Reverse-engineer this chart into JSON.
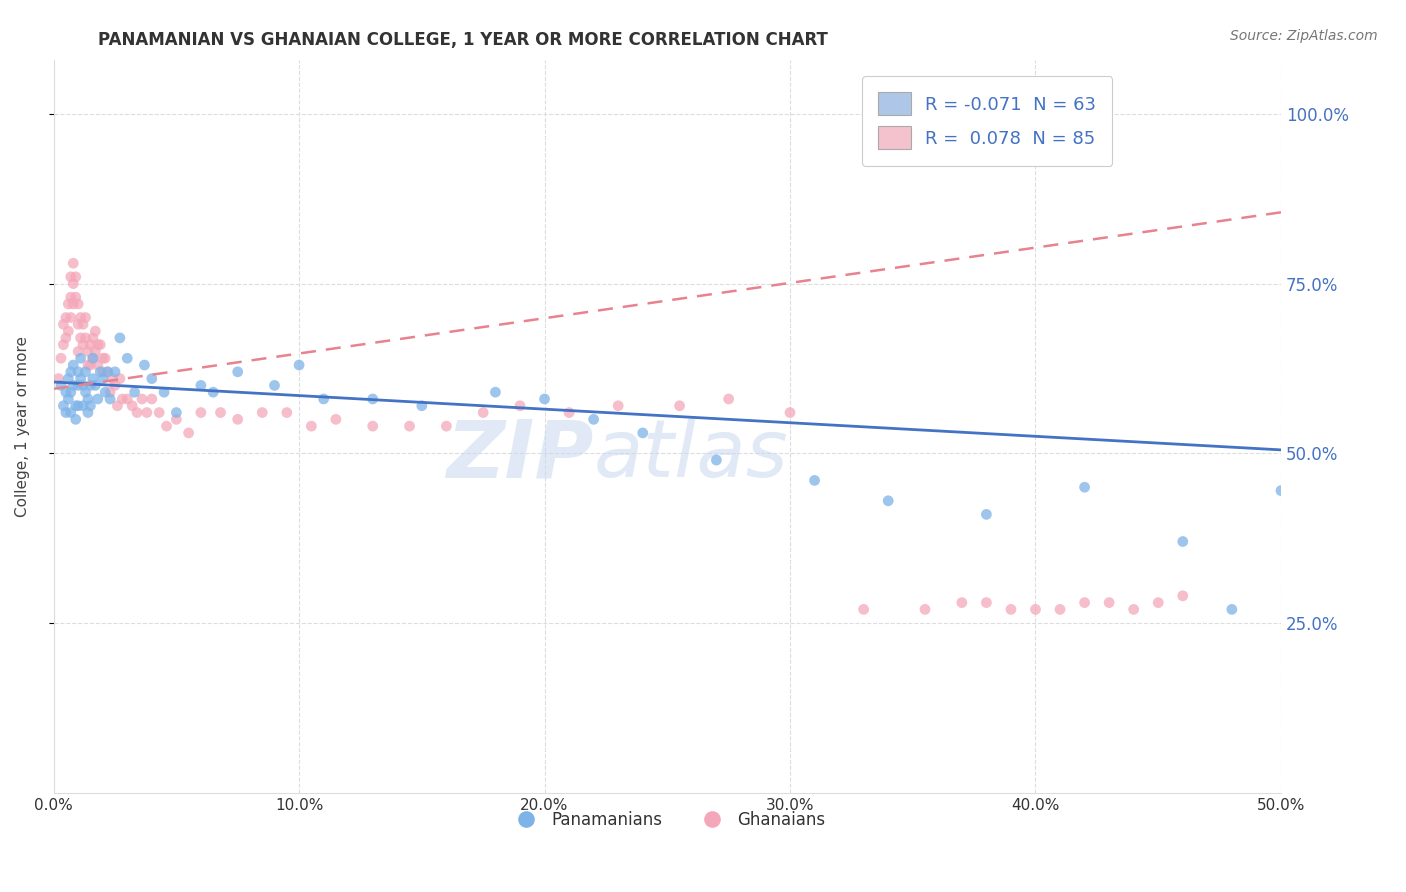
{
  "title": "PANAMANIAN VS GHANAIAN COLLEGE, 1 YEAR OR MORE CORRELATION CHART",
  "source_text": "Source: ZipAtlas.com",
  "ylabel": "College, 1 year or more",
  "xlim": [
    0.0,
    0.5
  ],
  "ylim": [
    0.0,
    1.08
  ],
  "xtick_labels": [
    "0.0%",
    "10.0%",
    "20.0%",
    "30.0%",
    "40.0%",
    "50.0%"
  ],
  "xtick_vals": [
    0.0,
    0.1,
    0.2,
    0.3,
    0.4,
    0.5
  ],
  "ytick_labels": [
    "25.0%",
    "50.0%",
    "75.0%",
    "100.0%"
  ],
  "ytick_vals": [
    0.25,
    0.5,
    0.75,
    1.0
  ],
  "blue_dot_color": "#7EB3E8",
  "pink_dot_color": "#F4A7B9",
  "blue_line_color": "#4472C4",
  "pink_line_color": "#E8828F",
  "legend_blue_face": "#AEC6E8",
  "legend_pink_face": "#F4C2CC",
  "axis_label_color": "#5580CC",
  "right_tick_color": "#4472C4",
  "R_blue": -0.071,
  "N_blue": 63,
  "R_pink": 0.078,
  "N_pink": 85,
  "blue_line_y0": 0.605,
  "blue_line_y1": 0.505,
  "pink_line_y0": 0.595,
  "pink_line_y1": 0.855,
  "blue_scatter_x": [
    0.003,
    0.004,
    0.005,
    0.005,
    0.006,
    0.006,
    0.007,
    0.007,
    0.007,
    0.008,
    0.008,
    0.009,
    0.009,
    0.01,
    0.01,
    0.01,
    0.011,
    0.011,
    0.012,
    0.012,
    0.013,
    0.013,
    0.014,
    0.014,
    0.015,
    0.015,
    0.016,
    0.016,
    0.017,
    0.018,
    0.019,
    0.02,
    0.021,
    0.022,
    0.023,
    0.025,
    0.027,
    0.03,
    0.033,
    0.037,
    0.04,
    0.045,
    0.05,
    0.06,
    0.065,
    0.075,
    0.09,
    0.1,
    0.11,
    0.13,
    0.15,
    0.18,
    0.2,
    0.22,
    0.24,
    0.27,
    0.31,
    0.34,
    0.38,
    0.42,
    0.46,
    0.48,
    0.5
  ],
  "blue_scatter_y": [
    0.6,
    0.57,
    0.59,
    0.56,
    0.61,
    0.58,
    0.62,
    0.59,
    0.56,
    0.63,
    0.6,
    0.57,
    0.55,
    0.62,
    0.6,
    0.57,
    0.64,
    0.61,
    0.6,
    0.57,
    0.62,
    0.59,
    0.58,
    0.56,
    0.6,
    0.57,
    0.64,
    0.61,
    0.6,
    0.58,
    0.62,
    0.61,
    0.59,
    0.62,
    0.58,
    0.62,
    0.67,
    0.64,
    0.59,
    0.63,
    0.61,
    0.59,
    0.56,
    0.6,
    0.59,
    0.62,
    0.6,
    0.63,
    0.58,
    0.58,
    0.57,
    0.59,
    0.58,
    0.55,
    0.53,
    0.49,
    0.46,
    0.43,
    0.41,
    0.45,
    0.37,
    0.27,
    0.445
  ],
  "pink_scatter_x": [
    0.002,
    0.003,
    0.004,
    0.004,
    0.005,
    0.005,
    0.006,
    0.006,
    0.007,
    0.007,
    0.007,
    0.008,
    0.008,
    0.008,
    0.009,
    0.009,
    0.01,
    0.01,
    0.01,
    0.011,
    0.011,
    0.012,
    0.012,
    0.013,
    0.013,
    0.014,
    0.014,
    0.015,
    0.015,
    0.016,
    0.016,
    0.017,
    0.017,
    0.018,
    0.018,
    0.019,
    0.02,
    0.02,
    0.021,
    0.022,
    0.023,
    0.024,
    0.025,
    0.026,
    0.027,
    0.028,
    0.03,
    0.032,
    0.034,
    0.036,
    0.038,
    0.04,
    0.043,
    0.046,
    0.05,
    0.055,
    0.06,
    0.068,
    0.075,
    0.085,
    0.095,
    0.105,
    0.115,
    0.13,
    0.145,
    0.16,
    0.175,
    0.19,
    0.21,
    0.23,
    0.255,
    0.275,
    0.3,
    0.33,
    0.355,
    0.37,
    0.38,
    0.39,
    0.4,
    0.41,
    0.42,
    0.43,
    0.44,
    0.45,
    0.46
  ],
  "pink_scatter_y": [
    0.61,
    0.64,
    0.66,
    0.69,
    0.67,
    0.7,
    0.68,
    0.72,
    0.7,
    0.73,
    0.76,
    0.72,
    0.75,
    0.78,
    0.73,
    0.76,
    0.72,
    0.69,
    0.65,
    0.7,
    0.67,
    0.69,
    0.66,
    0.7,
    0.67,
    0.65,
    0.63,
    0.66,
    0.63,
    0.67,
    0.64,
    0.68,
    0.65,
    0.66,
    0.63,
    0.66,
    0.64,
    0.62,
    0.64,
    0.62,
    0.59,
    0.61,
    0.6,
    0.57,
    0.61,
    0.58,
    0.58,
    0.57,
    0.56,
    0.58,
    0.56,
    0.58,
    0.56,
    0.54,
    0.55,
    0.53,
    0.56,
    0.56,
    0.55,
    0.56,
    0.56,
    0.54,
    0.55,
    0.54,
    0.54,
    0.54,
    0.56,
    0.57,
    0.56,
    0.57,
    0.57,
    0.58,
    0.56,
    0.27,
    0.27,
    0.28,
    0.28,
    0.27,
    0.27,
    0.27,
    0.28,
    0.28,
    0.27,
    0.28,
    0.29
  ]
}
